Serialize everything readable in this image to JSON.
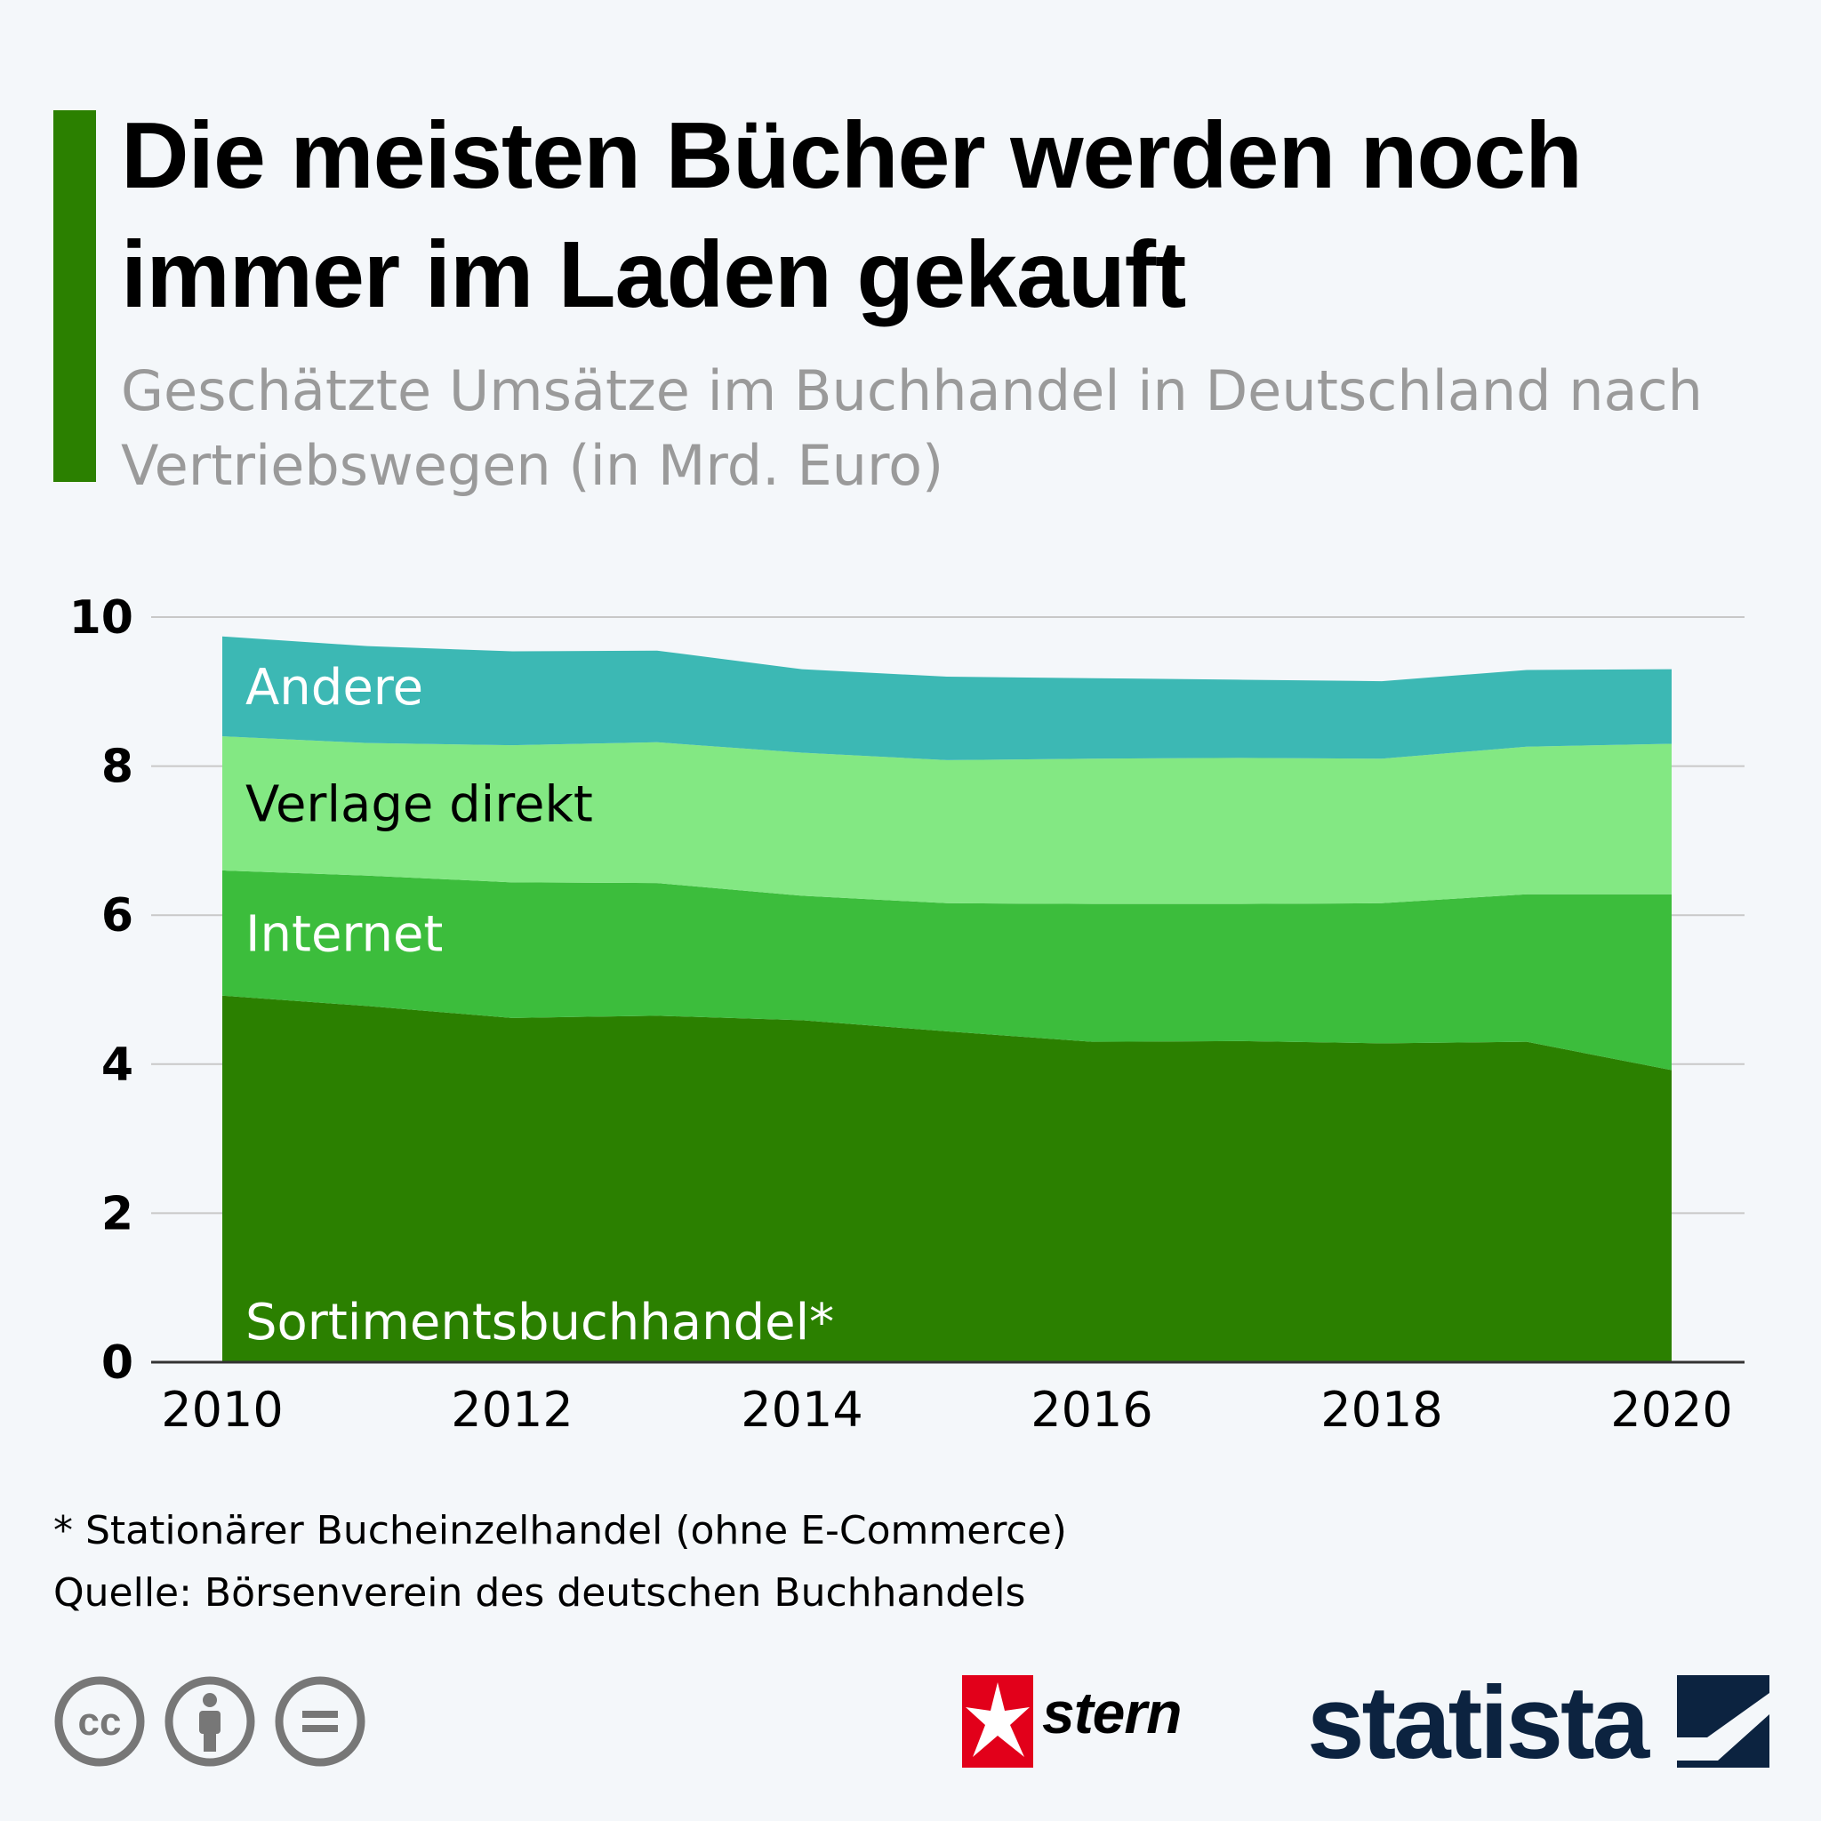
{
  "header": {
    "title": "Die meisten Bücher werden noch immer im Laden gekauft",
    "subtitle": "Geschätzte Umsätze im Buchhandel in Deutschland nach Vertriebswegen (in Mrd. Euro)"
  },
  "colors": {
    "accent": "#2b8000",
    "sortimentsbuchhandel": "#2b8000",
    "internet": "#3cbd3c",
    "verlage_direkt": "#83e883",
    "andere": "#3cb8b4",
    "gridline": "#c8c8c8",
    "axis": "#333333"
  },
  "chart_data": {
    "type": "area",
    "stacked": true,
    "title": "Geschätzte Umsätze im Buchhandel in Deutschland nach Vertriebswegen (in Mrd. Euro)",
    "xlabel": "",
    "ylabel": "",
    "x": [
      2010,
      2011,
      2012,
      2013,
      2014,
      2015,
      2016,
      2017,
      2018,
      2019,
      2020
    ],
    "xticks": [
      "2010",
      "2012",
      "2014",
      "2016",
      "2018",
      "2020"
    ],
    "xtick_values": [
      2010,
      2012,
      2014,
      2016,
      2018,
      2020
    ],
    "yticks": [
      "0",
      "2",
      "4",
      "6",
      "8",
      "10"
    ],
    "ytick_values": [
      0,
      2,
      4,
      6,
      8,
      10
    ],
    "ylim": [
      0,
      10
    ],
    "grid": true,
    "series": [
      {
        "name": "Sortimentsbuchhandel*",
        "key": "sortimentsbuchhandel",
        "label_color": "#ffffff",
        "values": [
          4.92,
          4.78,
          4.62,
          4.65,
          4.59,
          4.44,
          4.3,
          4.31,
          4.28,
          4.3,
          3.92
        ]
      },
      {
        "name": "Internet",
        "key": "internet",
        "label_color": "#ffffff",
        "values": [
          1.68,
          1.75,
          1.82,
          1.78,
          1.67,
          1.72,
          1.85,
          1.84,
          1.88,
          1.98,
          2.36
        ]
      },
      {
        "name": "Verlage direkt",
        "key": "verlage_direkt",
        "label_color": "#000000",
        "values": [
          1.8,
          1.78,
          1.84,
          1.89,
          1.92,
          1.92,
          1.95,
          1.96,
          1.94,
          1.98,
          2.02
        ]
      },
      {
        "name": "Andere",
        "key": "andere",
        "label_color": "#ffffff",
        "values": [
          1.34,
          1.3,
          1.26,
          1.23,
          1.12,
          1.12,
          1.08,
          1.05,
          1.04,
          1.03,
          1.0
        ]
      }
    ]
  },
  "footer": {
    "footnote": "* Stationärer Bucheinzelhandel (ohne E-Commerce)",
    "source": "Quelle: Börsenverein des deutschen Buchhandels"
  },
  "logos": {
    "cc_icons": [
      "cc-icon",
      "by-icon",
      "nd-icon"
    ],
    "stern": "stern",
    "statista": "statista"
  }
}
